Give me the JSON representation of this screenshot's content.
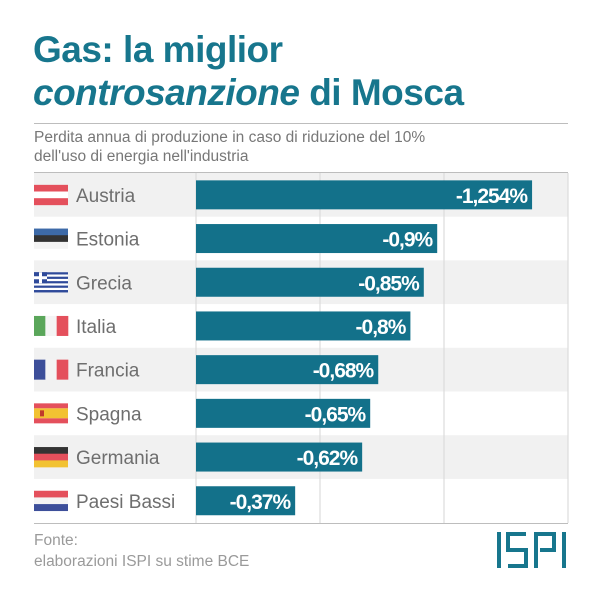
{
  "title": {
    "part1": "Gas: la miglior",
    "italic": "controsanzione",
    "part2": " di Mosca"
  },
  "subtitle": {
    "line1": "Perdita annua di produzione in caso di riduzione del 10%",
    "line2": "dell'uso di energia nell'industria"
  },
  "source": {
    "label": "Fonte:",
    "text": "elaborazioni ISPI su stime BCE"
  },
  "logo": "ISPI",
  "colors": {
    "bar": "#13718a",
    "title": "#17768d",
    "row_alt": "#f1f1f1",
    "grid": "#d6d6d6"
  },
  "chart_data": {
    "type": "bar",
    "orientation": "horizontal",
    "title": "Gas: la miglior controsanzione di Mosca",
    "subtitle": "Perdita annua di produzione in caso di riduzione del 10% dell'uso di energia nell'industria",
    "categories": [
      "Austria",
      "Estonia",
      "Grecia",
      "Italia",
      "Francia",
      "Spagna",
      "Germania",
      "Paesi Bassi"
    ],
    "flags": [
      "austria-flag",
      "estonia-flag",
      "greece-flag",
      "italy-flag",
      "france-flag",
      "spain-flag",
      "germany-flag",
      "netherlands-flag"
    ],
    "values": [
      -1.254,
      -0.9,
      -0.85,
      -0.8,
      -0.68,
      -0.65,
      -0.62,
      -0.37
    ],
    "labels": [
      "-1,254%",
      "-0,9%",
      "-0,85%",
      "-0,8%",
      "-0,68%",
      "-0,65%",
      "-0,62%",
      "-0,37%"
    ],
    "unit": "%",
    "grid": true
  }
}
